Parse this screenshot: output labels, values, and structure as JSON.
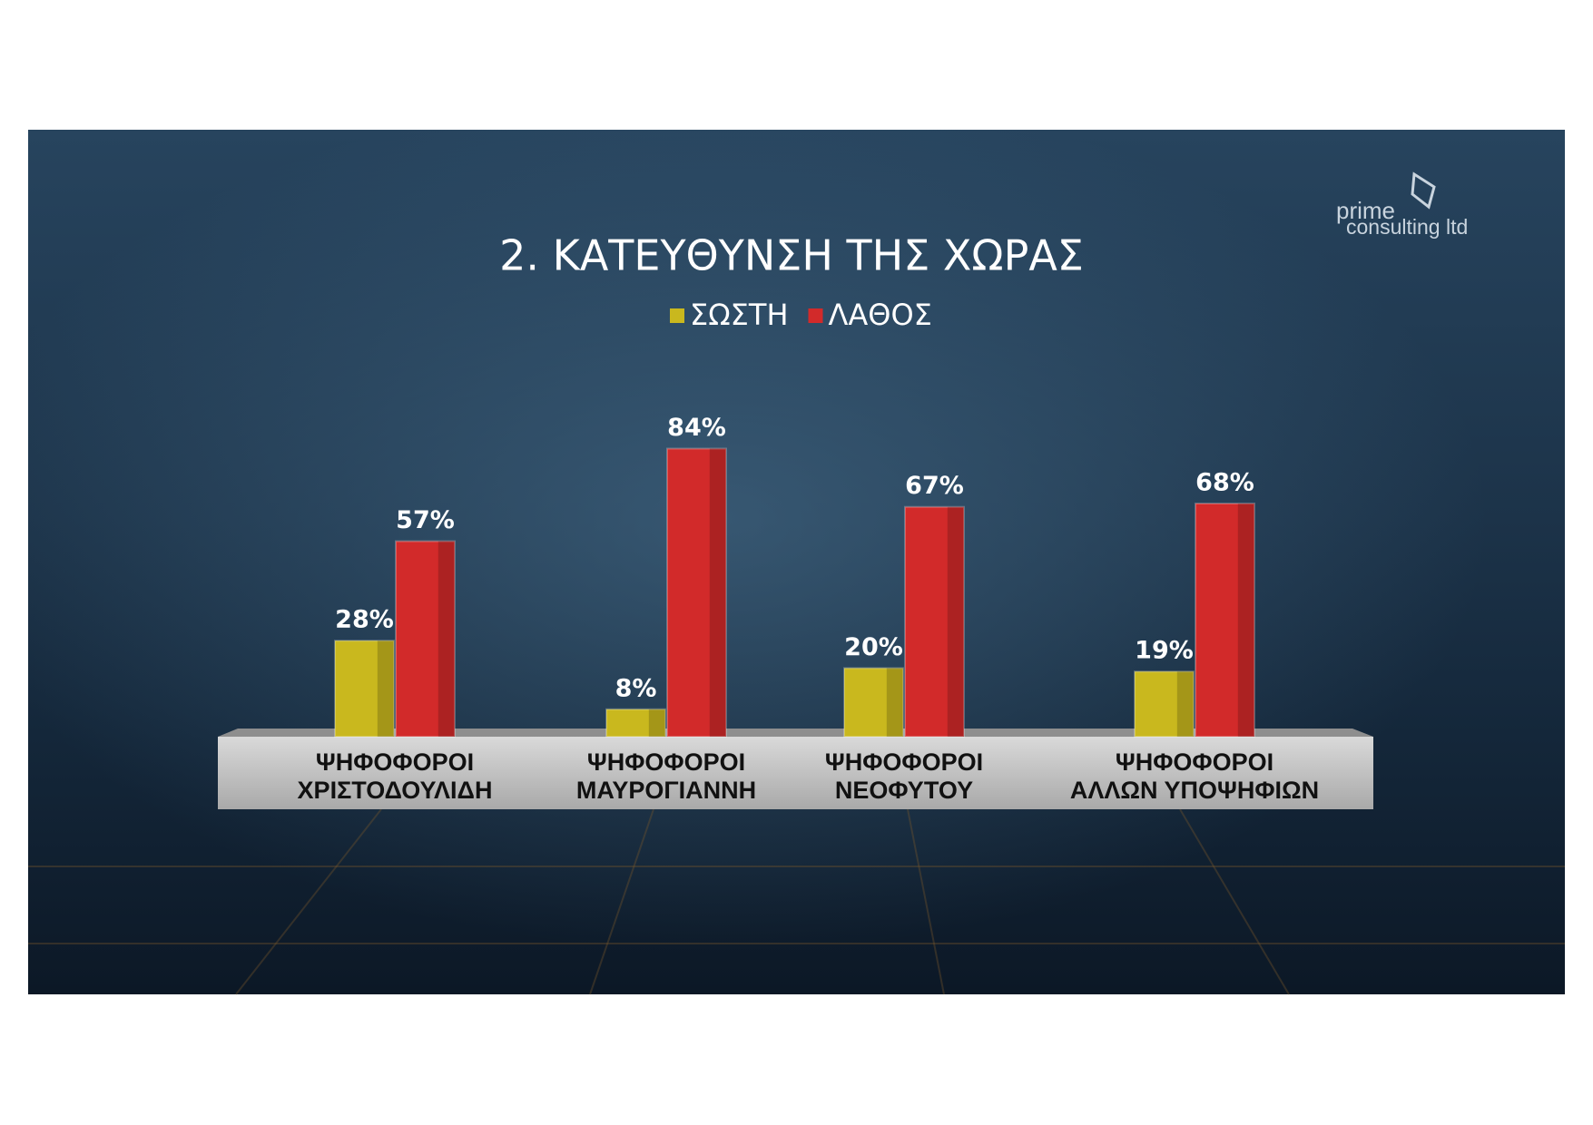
{
  "chart_data": {
    "type": "bar",
    "title": "2. ΚΑΤΕΥΘΥΝΣΗ ΤΗΣ ΧΩΡΑΣ",
    "logo": [
      "prime",
      "consulting ltd"
    ],
    "categories": [
      [
        "ΨΗΦΟΦΟΡΟΙ",
        "ΧΡΙΣΤΟΔΟΥΛΙΔΗ"
      ],
      [
        "ΨΗΦΟΦΟΡΟΙ",
        "ΜΑΥΡΟΓΙΑΝΝΗ"
      ],
      [
        "ΨΗΦΟΦΟΡΟΙ",
        "ΝΕΟΦΥΤΟΥ"
      ],
      [
        "ΨΗΦΟΦΟΡΟΙ",
        "ΑΛΛΩΝ ΥΠΟΨΗΦΙΩΝ"
      ]
    ],
    "series": [
      {
        "name": "ΣΩΣΤΗ",
        "color": "#c9b81e",
        "values": [
          28,
          8,
          20,
          19
        ],
        "value_labels": [
          "28%",
          "8%",
          "20%",
          "19%"
        ]
      },
      {
        "name": "ΛΑΘΟΣ",
        "color": "#d22a2a",
        "values": [
          57,
          84,
          67,
          68
        ],
        "value_labels": [
          "57%",
          "84%",
          "67%",
          "68%"
        ]
      }
    ],
    "legend": "top"
  }
}
